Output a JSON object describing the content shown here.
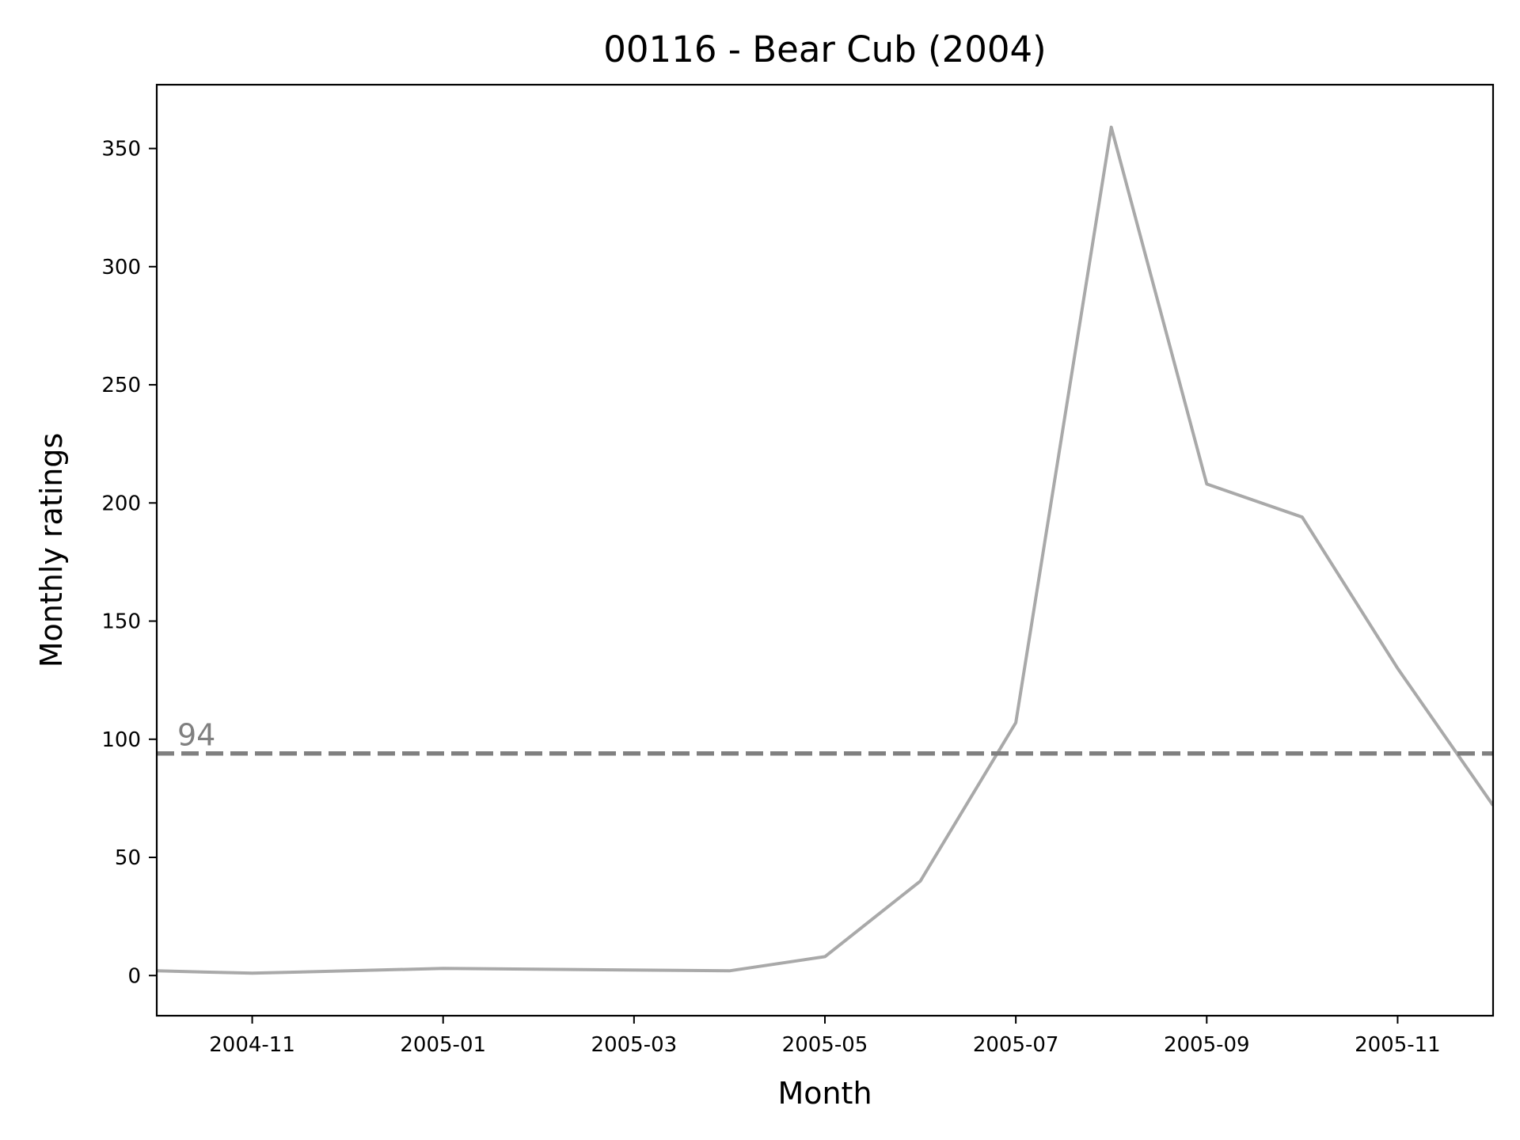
{
  "chart_data": {
    "type": "line",
    "title": "00116 - Bear Cub (2004)",
    "xlabel": "Month",
    "ylabel": "Monthly ratings",
    "x": [
      "2004-10",
      "2004-11",
      "2005-01",
      "2005-04",
      "2005-05",
      "2005-06",
      "2005-07",
      "2005-08",
      "2005-09",
      "2005-10",
      "2005-11",
      "2005-12"
    ],
    "series": [
      {
        "values": [
          2,
          1,
          3,
          2,
          8,
          40,
          107,
          359,
          208,
          194,
          130,
          72
        ],
        "color": "#a9a9a9"
      }
    ],
    "reference_line": {
      "value": 94,
      "label": "94",
      "style": "dashed",
      "color": "#808080"
    },
    "xlim": [
      "2004-10",
      "2005-12"
    ],
    "ylim": [
      -17,
      377
    ],
    "xticks": [
      "2004-11",
      "2005-01",
      "2005-03",
      "2005-05",
      "2005-07",
      "2005-09",
      "2005-11"
    ],
    "yticks": [
      0,
      50,
      100,
      150,
      200,
      250,
      300,
      350
    ],
    "grid": false,
    "legend": "none"
  }
}
